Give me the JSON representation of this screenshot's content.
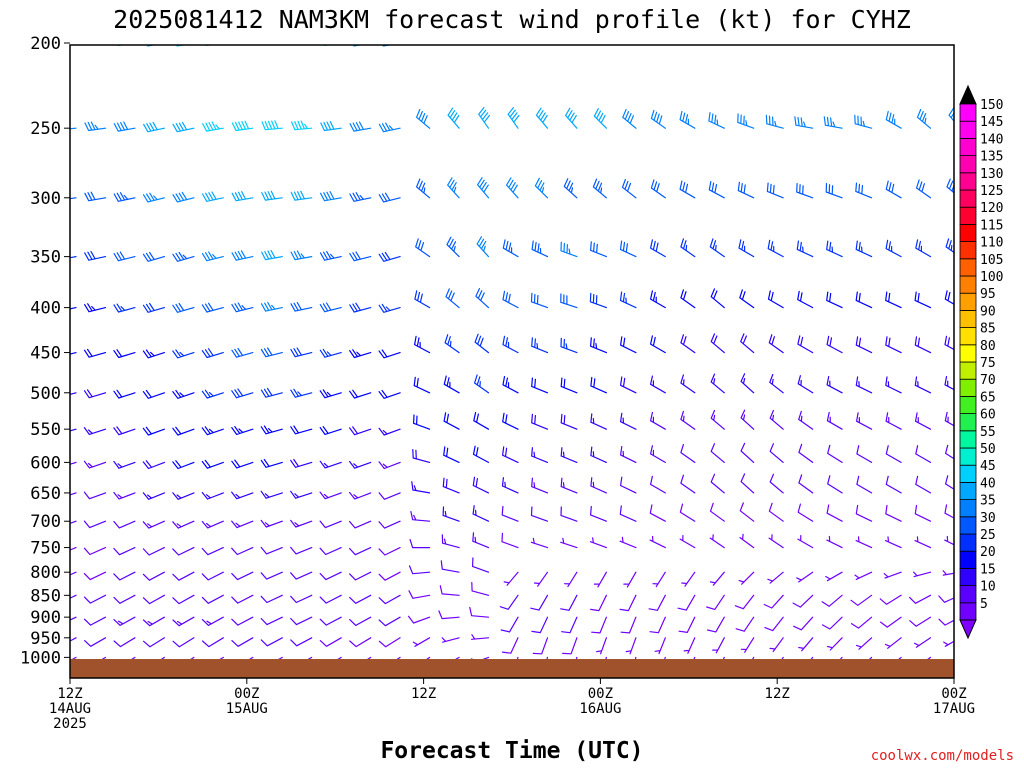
{
  "chart_data": {
    "type": "wind-barb time-height",
    "title": "2025081412 NAM3KM forecast wind profile (kt) for CYHZ",
    "xlabel": "Forecast Time (UTC)",
    "credit": "coolwx.com/models",
    "y_levels": [
      200,
      250,
      300,
      350,
      400,
      450,
      500,
      550,
      600,
      650,
      700,
      750,
      800,
      850,
      900,
      950,
      1000
    ],
    "y_scale": "log-pressure",
    "ylim": [
      1050,
      200
    ],
    "x_ticks": [
      {
        "hour": 0,
        "line1": "12Z",
        "line2": "14AUG",
        "line3": "2025"
      },
      {
        "hour": 12,
        "line1": "00Z",
        "line2": "15AUG",
        "line3": ""
      },
      {
        "hour": 24,
        "line1": "12Z",
        "line2": "",
        "line3": ""
      },
      {
        "hour": 36,
        "line1": "00Z",
        "line2": "16AUG",
        "line3": ""
      },
      {
        "hour": 48,
        "line1": "12Z",
        "line2": "",
        "line3": ""
      },
      {
        "hour": 60,
        "line1": "00Z",
        "line2": "17AUG",
        "line3": ""
      }
    ],
    "x_range_hours": [
      0,
      60
    ],
    "sample_times_hours": [
      0,
      2,
      4,
      6,
      8,
      10,
      12,
      14,
      16,
      18,
      20,
      22,
      24,
      26,
      28,
      30,
      32,
      34,
      36,
      38,
      40,
      42,
      44,
      46,
      48,
      50,
      52,
      54,
      56,
      58,
      60
    ],
    "colorbar": {
      "values": [
        5,
        10,
        15,
        20,
        25,
        30,
        35,
        40,
        45,
        50,
        55,
        60,
        65,
        70,
        75,
        80,
        85,
        90,
        95,
        100,
        105,
        110,
        115,
        120,
        125,
        130,
        135,
        140,
        145,
        150
      ],
      "colors": [
        "#7000ff",
        "#5a00ff",
        "#3000ff",
        "#0000ff",
        "#0030ff",
        "#0058ff",
        "#0080ff",
        "#00a8ff",
        "#00d0ff",
        "#00f0d0",
        "#00f8a0",
        "#20f050",
        "#40f020",
        "#80f000",
        "#c0f000",
        "#ffff00",
        "#ffe000",
        "#ffc000",
        "#ffa000",
        "#ff8000",
        "#ff6000",
        "#ff3000",
        "#ff0000",
        "#ff0030",
        "#ff0060",
        "#ff0090",
        "#ff00b0",
        "#ff00d0",
        "#ff00f0",
        "#ff00ff"
      ],
      "min_arrow": "#8000ff",
      "max_arrow": "#000000"
    },
    "terrain_color": "#a0522d",
    "wind_rows": [
      {
        "level": 200,
        "dir": [
          270,
          265,
          262,
          260,
          260,
          262,
          265,
          268,
          265,
          262,
          260,
          260,
          300,
          305,
          310,
          315,
          320,
          320,
          325,
          320,
          320,
          315,
          310,
          310,
          305,
          300,
          300,
          300,
          305,
          310,
          320
        ],
        "spd": [
          38,
          38,
          40,
          42,
          45,
          48,
          50,
          50,
          48,
          45,
          40,
          38,
          35,
          35,
          38,
          42,
          45,
          45,
          42,
          42,
          40,
          38,
          38,
          40,
          42,
          40,
          40,
          38,
          38,
          36,
          35
        ]
      },
      {
        "level": 250,
        "dir": [
          265,
          262,
          260,
          258,
          258,
          260,
          262,
          265,
          265,
          262,
          260,
          258,
          310,
          320,
          325,
          325,
          320,
          318,
          315,
          310,
          305,
          300,
          295,
          290,
          285,
          280,
          280,
          285,
          300,
          310,
          320
        ],
        "spd": [
          36,
          36,
          38,
          40,
          42,
          45,
          48,
          48,
          45,
          42,
          38,
          35,
          38,
          40,
          42,
          42,
          40,
          40,
          40,
          38,
          38,
          36,
          36,
          36,
          36,
          36,
          36,
          36,
          36,
          35,
          35
        ]
      },
      {
        "level": 300,
        "dir": [
          262,
          260,
          258,
          256,
          256,
          258,
          260,
          262,
          262,
          260,
          258,
          256,
          310,
          318,
          320,
          318,
          315,
          312,
          310,
          308,
          305,
          300,
          298,
          295,
          292,
          290,
          290,
          292,
          300,
          305,
          310
        ],
        "spd": [
          32,
          32,
          34,
          36,
          38,
          40,
          42,
          42,
          40,
          38,
          34,
          30,
          34,
          36,
          38,
          38,
          36,
          34,
          34,
          32,
          32,
          30,
          30,
          30,
          30,
          30,
          30,
          30,
          30,
          30,
          30
        ]
      },
      {
        "level": 350,
        "dir": [
          260,
          258,
          256,
          254,
          254,
          256,
          258,
          260,
          260,
          258,
          256,
          254,
          305,
          315,
          318,
          300,
          295,
          290,
          292,
          295,
          300,
          305,
          305,
          300,
          298,
          295,
          295,
          295,
          298,
          300,
          305
        ],
        "spd": [
          28,
          28,
          30,
          32,
          34,
          36,
          38,
          40,
          36,
          34,
          30,
          28,
          30,
          34,
          36,
          34,
          34,
          36,
          32,
          30,
          28,
          26,
          26,
          26,
          26,
          26,
          26,
          26,
          26,
          26,
          26
        ]
      },
      {
        "level": 400,
        "dir": [
          258,
          256,
          255,
          254,
          254,
          255,
          256,
          258,
          258,
          256,
          255,
          254,
          300,
          310,
          312,
          298,
          290,
          288,
          290,
          295,
          300,
          305,
          310,
          305,
          300,
          298,
          295,
          295,
          295,
          295,
          300
        ],
        "spd": [
          24,
          24,
          26,
          28,
          30,
          32,
          34,
          35,
          32,
          30,
          28,
          26,
          28,
          30,
          32,
          30,
          30,
          32,
          28,
          26,
          24,
          22,
          22,
          22,
          22,
          22,
          22,
          22,
          22,
          22,
          22
        ]
      },
      {
        "level": 450,
        "dir": [
          256,
          254,
          253,
          252,
          252,
          253,
          254,
          256,
          256,
          254,
          253,
          252,
          298,
          305,
          308,
          298,
          292,
          290,
          292,
          296,
          300,
          305,
          310,
          310,
          305,
          300,
          298,
          296,
          296,
          296,
          298
        ],
        "spd": [
          20,
          20,
          22,
          24,
          26,
          28,
          30,
          30,
          28,
          26,
          24,
          22,
          24,
          26,
          28,
          26,
          26,
          26,
          24,
          22,
          20,
          18,
          18,
          18,
          18,
          18,
          18,
          18,
          18,
          18,
          18
        ]
      },
      {
        "level": 500,
        "dir": [
          255,
          253,
          252,
          251,
          251,
          252,
          253,
          255,
          255,
          253,
          252,
          251,
          295,
          300,
          305,
          298,
          292,
          292,
          294,
          296,
          300,
          305,
          310,
          312,
          308,
          302,
          298,
          296,
          296,
          296,
          298
        ],
        "spd": [
          18,
          18,
          20,
          22,
          24,
          26,
          28,
          28,
          26,
          24,
          22,
          20,
          22,
          24,
          26,
          24,
          22,
          22,
          20,
          18,
          16,
          15,
          15,
          15,
          15,
          15,
          15,
          15,
          15,
          15,
          15
        ]
      },
      {
        "level": 550,
        "dir": [
          254,
          252,
          251,
          250,
          250,
          251,
          252,
          254,
          254,
          252,
          251,
          250,
          290,
          298,
          300,
          296,
          292,
          292,
          294,
          296,
          300,
          305,
          310,
          312,
          310,
          305,
          300,
          298,
          298,
          298,
          300
        ],
        "spd": [
          16,
          16,
          18,
          20,
          22,
          24,
          24,
          24,
          22,
          20,
          18,
          16,
          20,
          22,
          22,
          20,
          18,
          18,
          16,
          15,
          14,
          13,
          13,
          13,
          13,
          13,
          13,
          13,
          13,
          13,
          13
        ]
      },
      {
        "level": 600,
        "dir": [
          253,
          251,
          250,
          249,
          249,
          250,
          251,
          253,
          253,
          251,
          250,
          249,
          285,
          295,
          298,
          295,
          292,
          292,
          294,
          296,
          300,
          305,
          310,
          312,
          310,
          306,
          302,
          300,
          300,
          300,
          302
        ],
        "spd": [
          14,
          14,
          16,
          18,
          20,
          20,
          20,
          20,
          18,
          16,
          15,
          14,
          18,
          20,
          20,
          18,
          16,
          16,
          15,
          14,
          13,
          12,
          12,
          12,
          12,
          12,
          12,
          12,
          12,
          12,
          12
        ]
      },
      {
        "level": 650,
        "dir": [
          252,
          250,
          249,
          248,
          248,
          249,
          250,
          252,
          252,
          250,
          249,
          248,
          280,
          292,
          296,
          294,
          292,
          292,
          294,
          296,
          300,
          305,
          310,
          312,
          310,
          306,
          302,
          300,
          300,
          300,
          302
        ],
        "spd": [
          12,
          12,
          14,
          16,
          16,
          16,
          16,
          16,
          16,
          14,
          13,
          12,
          16,
          18,
          18,
          16,
          14,
          14,
          13,
          12,
          11,
          10,
          10,
          10,
          10,
          10,
          10,
          10,
          10,
          10,
          10
        ]
      },
      {
        "level": 700,
        "dir": [
          250,
          248,
          247,
          246,
          246,
          247,
          248,
          250,
          250,
          248,
          247,
          246,
          275,
          290,
          295,
          292,
          290,
          290,
          292,
          294,
          298,
          302,
          306,
          308,
          306,
          302,
          298,
          296,
          296,
          296,
          298
        ],
        "spd": [
          10,
          10,
          12,
          14,
          14,
          14,
          14,
          14,
          14,
          12,
          12,
          10,
          14,
          16,
          16,
          12,
          10,
          10,
          10,
          10,
          9,
          9,
          9,
          9,
          9,
          9,
          9,
          9,
          9,
          9,
          9
        ]
      },
      {
        "level": 750,
        "dir": [
          248,
          246,
          245,
          244,
          244,
          245,
          246,
          248,
          248,
          246,
          245,
          244,
          270,
          285,
          292,
          290,
          288,
          288,
          290,
          292,
          296,
          300,
          304,
          306,
          304,
          300,
          296,
          294,
          294,
          294,
          296
        ],
        "spd": [
          8,
          8,
          10,
          12,
          12,
          12,
          12,
          12,
          12,
          10,
          10,
          8,
          12,
          14,
          14,
          8,
          7,
          7,
          7,
          7,
          7,
          7,
          7,
          7,
          7,
          7,
          7,
          7,
          7,
          7,
          7
        ]
      },
      {
        "level": 800,
        "dir": [
          246,
          244,
          243,
          242,
          242,
          243,
          244,
          246,
          246,
          244,
          243,
          242,
          265,
          280,
          290,
          220,
          215,
          212,
          210,
          210,
          212,
          215,
          220,
          225,
          230,
          235,
          240,
          245,
          250,
          255,
          260
        ],
        "spd": [
          8,
          8,
          10,
          12,
          12,
          12,
          12,
          12,
          12,
          10,
          10,
          8,
          10,
          12,
          12,
          7,
          7,
          7,
          7,
          7,
          7,
          7,
          7,
          7,
          7,
          7,
          7,
          7,
          7,
          7,
          7
        ]
      },
      {
        "level": 850,
        "dir": [
          245,
          243,
          242,
          241,
          241,
          242,
          243,
          245,
          245,
          243,
          242,
          241,
          260,
          275,
          285,
          215,
          210,
          208,
          206,
          206,
          208,
          210,
          214,
          218,
          222,
          226,
          230,
          234,
          238,
          242,
          246
        ],
        "spd": [
          10,
          10,
          12,
          12,
          12,
          12,
          12,
          12,
          12,
          10,
          10,
          10,
          8,
          8,
          8,
          12,
          12,
          10,
          8,
          8,
          8,
          8,
          8,
          8,
          8,
          8,
          8,
          8,
          8,
          8,
          8
        ]
      },
      {
        "level": 900,
        "dir": [
          244,
          242,
          241,
          240,
          240,
          241,
          242,
          244,
          244,
          242,
          241,
          240,
          250,
          265,
          275,
          210,
          205,
          204,
          202,
          202,
          204,
          206,
          210,
          214,
          218,
          222,
          226,
          230,
          234,
          238,
          242
        ],
        "spd": [
          12,
          12,
          14,
          14,
          14,
          14,
          12,
          12,
          12,
          10,
          10,
          10,
          8,
          8,
          8,
          10,
          10,
          10,
          8,
          8,
          8,
          8,
          8,
          8,
          8,
          8,
          8,
          8,
          8,
          8,
          8
        ]
      },
      {
        "level": 950,
        "dir": [
          242,
          240,
          239,
          238,
          238,
          239,
          240,
          242,
          242,
          240,
          239,
          238,
          240,
          255,
          265,
          205,
          200,
          200,
          200,
          200,
          202,
          204,
          208,
          212,
          216,
          220,
          224,
          228,
          232,
          236,
          240
        ],
        "spd": [
          10,
          10,
          12,
          12,
          12,
          12,
          10,
          10,
          10,
          8,
          8,
          8,
          7,
          7,
          7,
          8,
          8,
          8,
          7,
          7,
          7,
          7,
          7,
          7,
          7,
          7,
          7,
          7,
          7,
          7,
          7
        ]
      },
      {
        "level": 1000,
        "dir": [
          240,
          238,
          237,
          236,
          236,
          237,
          238,
          240,
          240,
          238,
          237,
          236,
          235,
          240,
          250,
          200,
          198,
          198,
          198,
          198,
          200,
          202,
          206,
          210,
          214,
          218,
          222,
          226,
          230,
          234,
          238
        ],
        "spd": [
          6,
          6,
          8,
          8,
          8,
          8,
          6,
          6,
          6,
          5,
          5,
          5,
          5,
          5,
          5,
          5,
          5,
          5,
          5,
          5,
          5,
          5,
          5,
          5,
          5,
          5,
          5,
          5,
          5,
          5,
          5
        ]
      }
    ]
  }
}
